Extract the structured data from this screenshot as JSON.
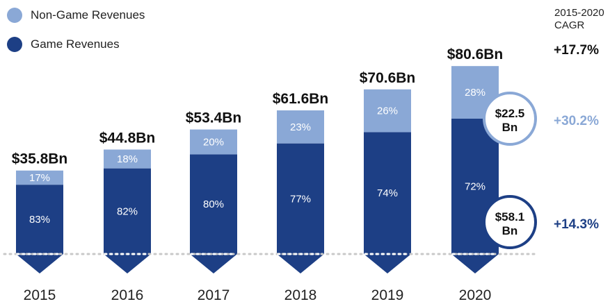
{
  "legend": {
    "non_game": "Non-Game Revenues",
    "game": "Game Revenues"
  },
  "cagr": {
    "title_line1": "2015-2020",
    "title_line2": "CAGR",
    "total": "+17.7%",
    "non_game": "+30.2%",
    "game": "+14.3%"
  },
  "colors": {
    "game": "#1d3f85",
    "non_game": "#8aa8d6",
    "non_game_text": "#8aa8d6",
    "game_text": "#1d3f85"
  },
  "chart_data": {
    "type": "bar",
    "stacked": true,
    "categories": [
      "2015",
      "2016",
      "2017",
      "2018",
      "2019",
      "2020"
    ],
    "totals": [
      35.8,
      44.8,
      53.4,
      61.6,
      70.6,
      80.6
    ],
    "total_labels": [
      "$35.8Bn",
      "$44.8Bn",
      "$53.4Bn",
      "$61.6Bn",
      "$70.6Bn",
      "$80.6Bn"
    ],
    "series": [
      {
        "name": "Game Revenues",
        "percent": [
          83,
          82,
          80,
          77,
          74,
          72
        ],
        "labels": [
          "83%",
          "82%",
          "80%",
          "77%",
          "74%",
          "72%"
        ]
      },
      {
        "name": "Non-Game Revenues",
        "percent": [
          17,
          18,
          20,
          23,
          26,
          28
        ],
        "labels": [
          "17%",
          "18%",
          "20%",
          "23%",
          "26%",
          "28%"
        ]
      }
    ],
    "annotations": [
      {
        "series": "Non-Game Revenues",
        "category": "2020",
        "line1": "$22.5",
        "line2": "Bn"
      },
      {
        "series": "Game Revenues",
        "category": "2020",
        "line1": "$58.1",
        "line2": "Bn"
      }
    ]
  }
}
